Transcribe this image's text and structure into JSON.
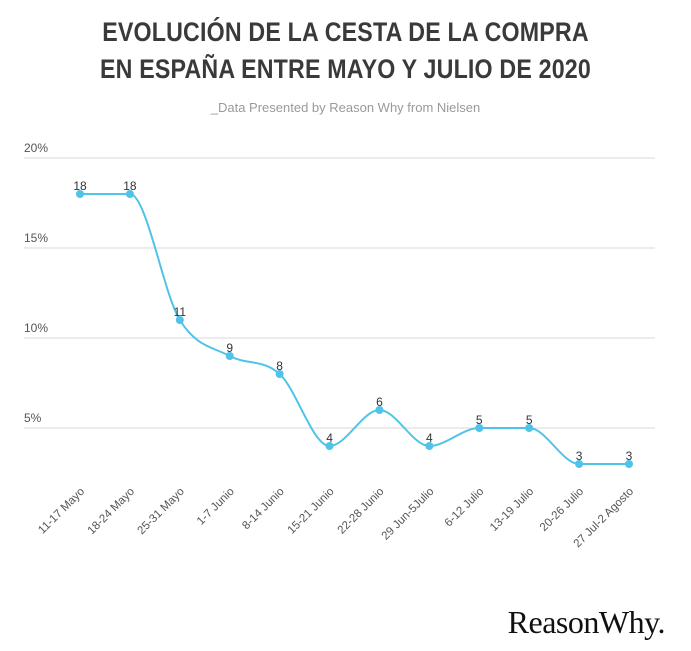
{
  "title_line1": "EVOLUCIÓN DE LA CESTA DE LA COMPRA",
  "title_line2": "EN ESPAÑA ENTRE MAYO Y JULIO DE 2020",
  "subtitle": "_Data Presented by Reason Why from Nielsen",
  "logo": "ReasonWhy.",
  "colors": {
    "line": "#4fc3e8",
    "point": "#4fc3e8",
    "grid": "#d9d9d9",
    "text": "#333333"
  },
  "chart_data": {
    "type": "line",
    "categories": [
      "11-17 Mayo",
      "18-24 Mayo",
      "25-31 Mayo",
      "1-7 Junio",
      "8-14 Junio",
      "15-21 Junio",
      "22-28 Junio",
      "29 Jun-5Julio",
      "6-12 Julio",
      "13-19 Julio",
      "20-26 Julio",
      "27 Jul-2 Agosto"
    ],
    "values": [
      18,
      18,
      11,
      9,
      8,
      4,
      6,
      4,
      5,
      5,
      3,
      3
    ],
    "ylim": [
      0,
      20
    ],
    "yticks": [
      5,
      10,
      15,
      20
    ],
    "ytick_labels": [
      "5%",
      "10%",
      "15%",
      "20%"
    ],
    "grid": true,
    "smooth": true,
    "data_labels": true
  }
}
